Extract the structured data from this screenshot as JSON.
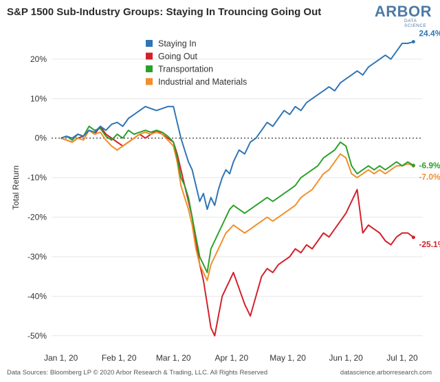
{
  "header": {
    "title": "S&P 1500 Sub-Industry Groups: Staying In Trouncing Going Out",
    "logo_main": "Arbor",
    "logo_sub": "DATA SCIENCE"
  },
  "footer": {
    "sources": "Data Sources: Bloomberg LP © 2020 Arbor Research & Trading, LLC. All Rights Reserved",
    "site": "datascience.arborresearch.com"
  },
  "chart_data": {
    "type": "line",
    "title": "S&P 1500 Sub-Industry Groups: Staying In Trouncing Going Out",
    "xlabel": "",
    "ylabel": "Total Return",
    "ylim": [
      -53,
      28
    ],
    "xlim": [
      -5,
      193
    ],
    "x_unit": "days since Jan 1, 2020",
    "yticks": [
      20,
      10,
      0,
      -10,
      -20,
      -30,
      -40,
      -50
    ],
    "ytick_labels": [
      "20%",
      "10%",
      "0%",
      "-10%",
      "-20%",
      "-30%",
      "-40%",
      "-50%"
    ],
    "xticks": [
      0,
      31,
      60,
      91,
      121,
      152,
      182
    ],
    "xtick_labels": [
      "Jan 1, 20",
      "Feb 1, 20",
      "Mar 1, 20",
      "Apr 1, 20",
      "May 1, 20",
      "Jun 1, 20",
      "Jul 1, 20"
    ],
    "zero_line": "dotted",
    "legend_position": "top-left",
    "series": [
      {
        "name": "Staying In",
        "color": "#2f75b5",
        "end_label": "24.4%",
        "x": [
          0,
          3,
          6,
          9,
          12,
          15,
          18,
          21,
          24,
          27,
          30,
          33,
          36,
          39,
          42,
          45,
          48,
          51,
          54,
          57,
          60,
          62,
          64,
          66,
          68,
          70,
          72,
          74,
          76,
          78,
          80,
          82,
          84,
          86,
          88,
          90,
          92,
          95,
          98,
          101,
          104,
          107,
          110,
          113,
          116,
          119,
          122,
          125,
          128,
          131,
          134,
          137,
          140,
          143,
          146,
          149,
          152,
          155,
          158,
          161,
          164,
          167,
          170,
          173,
          176,
          179,
          182,
          185,
          188
        ],
        "values": [
          0,
          0.5,
          0,
          1,
          0.5,
          2,
          1.5,
          3,
          2,
          3.5,
          4,
          3,
          5,
          6,
          7,
          8,
          7.5,
          7,
          7.5,
          8,
          8,
          4,
          0,
          -3,
          -6,
          -8,
          -12,
          -16,
          -14,
          -18,
          -15,
          -17,
          -13,
          -10,
          -8,
          -9,
          -6,
          -3,
          -4,
          -1,
          0,
          2,
          4,
          3,
          5,
          7,
          6,
          8,
          7,
          9,
          10,
          11,
          12,
          13,
          12,
          14,
          15,
          16,
          17,
          16,
          18,
          19,
          20,
          21,
          20,
          22,
          24,
          24,
          24.4
        ]
      },
      {
        "name": "Going Out",
        "color": "#d3202a",
        "end_label": "-25.1%",
        "x": [
          0,
          3,
          6,
          9,
          12,
          15,
          18,
          21,
          24,
          27,
          30,
          33,
          36,
          39,
          42,
          45,
          48,
          51,
          54,
          57,
          60,
          62,
          64,
          66,
          68,
          70,
          72,
          74,
          76,
          78,
          80,
          82,
          84,
          86,
          88,
          90,
          92,
          95,
          98,
          101,
          104,
          107,
          110,
          113,
          116,
          119,
          122,
          125,
          128,
          131,
          134,
          137,
          140,
          143,
          146,
          149,
          152,
          155,
          158,
          161,
          164,
          167,
          170,
          173,
          176,
          179,
          182,
          185,
          188
        ],
        "values": [
          0,
          -0.5,
          -1,
          0,
          0.5,
          2,
          1,
          3,
          1,
          0,
          -1,
          -2,
          -1,
          0,
          1,
          0,
          1,
          2,
          1,
          0,
          -1,
          -4,
          -8,
          -12,
          -16,
          -20,
          -26,
          -32,
          -36,
          -42,
          -48,
          -50,
          -45,
          -40,
          -38,
          -36,
          -34,
          -38,
          -42,
          -45,
          -40,
          -35,
          -33,
          -34,
          -32,
          -31,
          -30,
          -28,
          -29,
          -27,
          -28,
          -26,
          -24,
          -25,
          -23,
          -21,
          -19,
          -16,
          -13,
          -24,
          -22,
          -23,
          -24,
          -26,
          -27,
          -25,
          -24,
          -24,
          -25.1
        ]
      },
      {
        "name": "Transportation",
        "color": "#2ca02c",
        "end_label": "-6.9%",
        "x": [
          0,
          3,
          6,
          9,
          12,
          15,
          18,
          21,
          24,
          27,
          30,
          33,
          36,
          39,
          42,
          45,
          48,
          51,
          54,
          57,
          60,
          62,
          64,
          66,
          68,
          70,
          72,
          74,
          76,
          78,
          80,
          82,
          84,
          86,
          88,
          90,
          92,
          95,
          98,
          101,
          104,
          107,
          110,
          113,
          116,
          119,
          122,
          125,
          128,
          131,
          134,
          137,
          140,
          143,
          146,
          149,
          152,
          155,
          158,
          161,
          164,
          167,
          170,
          173,
          176,
          179,
          182,
          185,
          188
        ],
        "values": [
          0,
          0.5,
          -0.5,
          1,
          0.5,
          3,
          2,
          2.5,
          0.5,
          -0.5,
          1,
          0,
          2,
          1,
          1.5,
          2,
          1.5,
          2,
          1.5,
          0.5,
          -1,
          -5,
          -10,
          -12,
          -15,
          -20,
          -25,
          -30,
          -32,
          -34,
          -28,
          -26,
          -24,
          -22,
          -20,
          -18,
          -17,
          -18,
          -19,
          -18,
          -17,
          -16,
          -15,
          -16,
          -15,
          -14,
          -13,
          -12,
          -10,
          -9,
          -8,
          -7,
          -5,
          -4,
          -3,
          -1,
          -2,
          -7,
          -9,
          -8,
          -7,
          -8,
          -7,
          -8,
          -7,
          -6,
          -7,
          -6,
          -6.9
        ]
      },
      {
        "name": "Industrial and Materials",
        "color": "#f28e2b",
        "end_label": "-7.0%",
        "x": [
          0,
          3,
          6,
          9,
          12,
          15,
          18,
          21,
          24,
          27,
          30,
          33,
          36,
          39,
          42,
          45,
          48,
          51,
          54,
          57,
          60,
          62,
          64,
          66,
          68,
          70,
          72,
          74,
          76,
          78,
          80,
          82,
          84,
          86,
          88,
          90,
          92,
          95,
          98,
          101,
          104,
          107,
          110,
          113,
          116,
          119,
          122,
          125,
          128,
          131,
          134,
          137,
          140,
          143,
          146,
          149,
          152,
          155,
          158,
          161,
          164,
          167,
          170,
          173,
          176,
          179,
          182,
          185,
          188
        ],
        "values": [
          0,
          -0.5,
          -1,
          0,
          -0.5,
          2,
          1,
          1.5,
          -0.5,
          -2,
          -3,
          -2,
          -1,
          0,
          1,
          1.5,
          1,
          1.5,
          1,
          -0.5,
          -2,
          -6,
          -12,
          -15,
          -18,
          -22,
          -28,
          -32,
          -34,
          -36,
          -32,
          -30,
          -28,
          -26,
          -24,
          -23,
          -22,
          -23,
          -24,
          -23,
          -22,
          -21,
          -20,
          -21,
          -20,
          -19,
          -18,
          -17,
          -15,
          -14,
          -13,
          -11,
          -9,
          -8,
          -6,
          -4,
          -5,
          -9,
          -10,
          -9,
          -8,
          -9,
          -8,
          -9,
          -8,
          -7,
          -7,
          -6.5,
          -7.0
        ]
      }
    ]
  }
}
